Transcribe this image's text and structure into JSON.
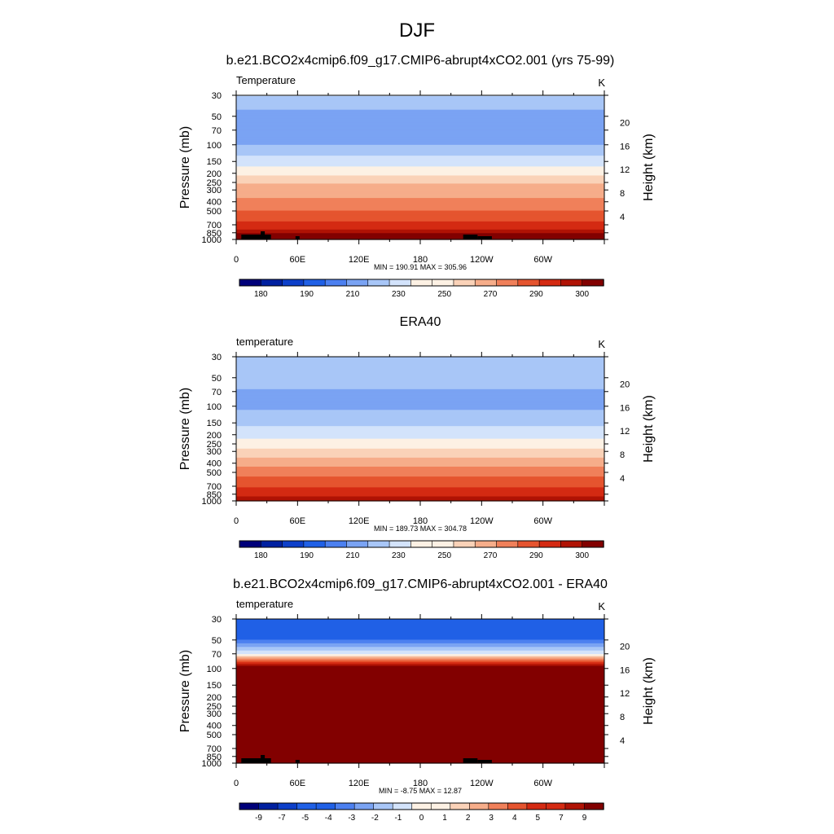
{
  "figure": {
    "title": "DJF"
  },
  "palette": [
    "#00007a",
    "#0020a0",
    "#0d3fc9",
    "#2060e6",
    "#4c80f0",
    "#7aa3f3",
    "#a8c6f7",
    "#d3e3fb",
    "#fdf1e4",
    "#fad2b8",
    "#f6ad8a",
    "#f0805a",
    "#e5542f",
    "#d42a12",
    "#b01305",
    "#820000"
  ],
  "chart_data": [
    {
      "type": "heatmap",
      "title": "b.e21.BCO2x4cmip6.f09_g17.CMIP6-abrupt4xCO2.001 (yrs 75-99)",
      "left_label": "Temperature",
      "units": "K",
      "ylabel": "Pressure (mb)",
      "ylabel_right": "Height (km)",
      "x_ticks": [
        "0",
        "60E",
        "120E",
        "180",
        "120W",
        "60W"
      ],
      "x_tick_lons": [
        0,
        60,
        120,
        180,
        240,
        300
      ],
      "x_range": [
        0,
        360
      ],
      "y_ticks": [
        30,
        50,
        70,
        100,
        150,
        200,
        250,
        300,
        400,
        500,
        700,
        850,
        1000
      ],
      "y_range": [
        30,
        1000
      ],
      "y_scale": "log",
      "height_ticks": [
        4,
        8,
        12,
        16,
        20
      ],
      "stats_text": "MIN = 190.91  MAX = 305.96",
      "min": 190.91,
      "max": 305.96,
      "colorbar": {
        "levels": [
          175,
          180,
          185,
          190,
          200,
          210,
          220,
          230,
          240,
          250,
          260,
          270,
          280,
          290,
          295,
          300
        ],
        "labels": [
          "180",
          "190",
          "210",
          "230",
          "250",
          "270",
          "290",
          "300"
        ]
      },
      "profile": {
        "p": [
          30,
          50,
          70,
          100,
          150,
          200,
          250,
          300,
          400,
          500,
          700,
          850,
          1000
        ],
        "values": [
          221,
          205,
          205,
          210,
          225,
          237,
          249,
          255,
          262,
          270,
          283,
          295,
          303
        ]
      },
      "topography": true
    },
    {
      "type": "heatmap",
      "title": "ERA40",
      "left_label": "temperature",
      "units": "K",
      "ylabel": "Pressure (mb)",
      "ylabel_right": "Height (km)",
      "x_ticks": [
        "0",
        "60E",
        "120E",
        "180",
        "120W",
        "60W"
      ],
      "x_tick_lons": [
        0,
        60,
        120,
        180,
        240,
        300
      ],
      "x_range": [
        0,
        360
      ],
      "y_ticks": [
        30,
        50,
        70,
        100,
        150,
        200,
        250,
        300,
        400,
        500,
        700,
        850,
        1000
      ],
      "y_range": [
        30,
        1000
      ],
      "y_scale": "log",
      "height_ticks": [
        4,
        8,
        12,
        16,
        20
      ],
      "stats_text": "MIN = 189.73  MAX = 304.78",
      "min": 189.73,
      "max": 304.78,
      "colorbar": {
        "levels": [
          175,
          180,
          185,
          190,
          200,
          210,
          220,
          230,
          240,
          250,
          260,
          270,
          280,
          290,
          295,
          300
        ],
        "labels": [
          "180",
          "190",
          "210",
          "230",
          "250",
          "270",
          "290",
          "300"
        ]
      },
      "profile": {
        "p": [
          30,
          50,
          70,
          100,
          150,
          200,
          250,
          300,
          400,
          500,
          700,
          850,
          1000
        ],
        "values": [
          220,
          214,
          209,
          208,
          218,
          226,
          235,
          243,
          257,
          266,
          279,
          288,
          295
        ]
      },
      "topography": false
    },
    {
      "type": "heatmap",
      "title": "b.e21.BCO2x4cmip6.f09_g17.CMIP6-abrupt4xCO2.001 - ERA40",
      "left_label": "temperature",
      "units": "K",
      "ylabel": "Pressure (mb)",
      "ylabel_right": "Height (km)",
      "x_ticks": [
        "0",
        "60E",
        "120E",
        "180",
        "120W",
        "60W"
      ],
      "x_tick_lons": [
        0,
        60,
        120,
        180,
        240,
        300
      ],
      "x_range": [
        0,
        360
      ],
      "y_ticks": [
        30,
        50,
        70,
        100,
        150,
        200,
        250,
        300,
        400,
        500,
        700,
        850,
        1000
      ],
      "y_range": [
        30,
        1000
      ],
      "y_scale": "log",
      "height_ticks": [
        4,
        8,
        12,
        16,
        20
      ],
      "stats_text": "MIN =  -8.75  MAX =  12.87",
      "min": -8.75,
      "max": 12.87,
      "colorbar": {
        "levels": [
          -10,
          -9,
          -8,
          -7,
          -6,
          -5,
          -4,
          -3,
          -2,
          -1,
          0,
          1,
          2,
          3,
          4,
          5,
          7,
          9
        ],
        "labels": [
          "-9",
          "-7",
          "-5",
          "-4",
          "-3",
          "-2",
          "-1",
          "0",
          "1",
          "2",
          "3",
          "4",
          "5",
          "7",
          "9"
        ]
      },
      "profile": {
        "p": [
          30,
          50,
          70,
          100,
          150,
          200,
          250,
          300,
          400,
          500,
          700,
          850,
          1000
        ],
        "values": [
          -8,
          -7,
          -3,
          5.5,
          9.5,
          9.5,
          9.5,
          9.5,
          9.5,
          8,
          6.5,
          5.5,
          5
        ]
      },
      "topography": true
    }
  ]
}
